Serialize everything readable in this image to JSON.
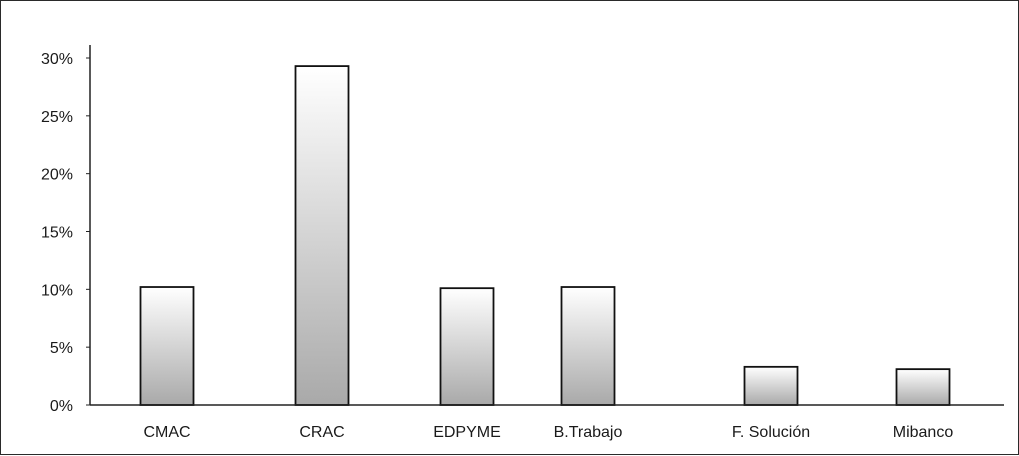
{
  "chart_data": {
    "type": "bar",
    "title": "",
    "xlabel": "",
    "ylabel": "",
    "categories": [
      "CMAC",
      "CRAC",
      "EDPYME",
      "B.Trabajo",
      "F. Solución",
      "Mibanco"
    ],
    "values": [
      10.2,
      29.3,
      10.1,
      10.2,
      3.3,
      3.1
    ],
    "value_unit": "%",
    "ylim": [
      0,
      30
    ],
    "yticks": [
      0,
      5,
      10,
      15,
      20,
      25,
      30
    ],
    "ytick_labels": [
      "0%",
      "5%",
      "10%",
      "15%",
      "20%",
      "25%",
      "30%"
    ],
    "grid": false,
    "legend": "none",
    "colors": {
      "bar_fill_light": "#ffffff",
      "bar_fill_dark": "#a9a9a9",
      "bar_stroke": "#111111",
      "axis": "#222222"
    }
  }
}
